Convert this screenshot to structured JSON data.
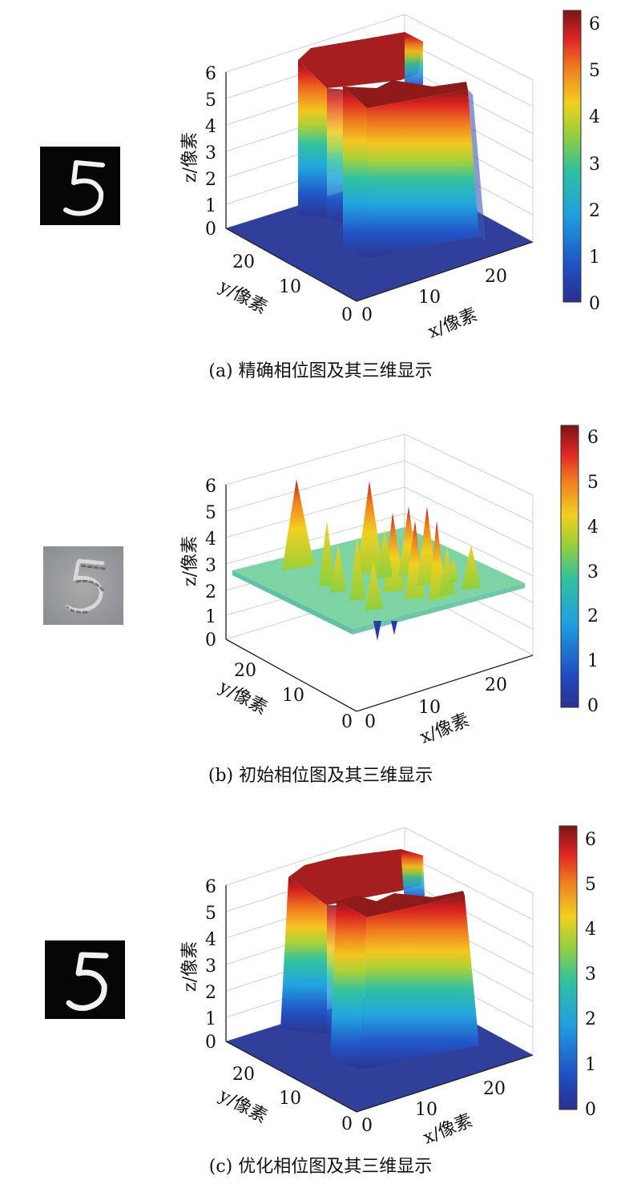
{
  "colorbar_ticks": [
    "0",
    "1",
    "2",
    "3",
    "4",
    "5",
    "6"
  ],
  "chart_data": [
    {
      "type": "surface",
      "caption": "(a) 精确相位图及其三维显示",
      "xlabel": "x/像素",
      "ylabel": "y/像素",
      "zlabel": "z/像素",
      "xticks": [
        "0",
        "10",
        "20"
      ],
      "yticks": [
        "0",
        "10",
        "20"
      ],
      "zticks": [
        "0",
        "1",
        "2",
        "3",
        "4",
        "5",
        "6"
      ],
      "zlim": [
        0,
        6.28
      ],
      "colormap": "jet",
      "thumbnail": "digit-5-binary",
      "peak_height": 6.28,
      "base_height": 0
    },
    {
      "type": "surface",
      "caption": "(b) 初始相位图及其三维显示",
      "xlabel": "x/像素",
      "ylabel": "y/像素",
      "zlabel": "z/像素",
      "xticks": [
        "0",
        "10",
        "20"
      ],
      "yticks": [
        "0",
        "10",
        "20"
      ],
      "zticks": [
        "0",
        "1",
        "2",
        "3",
        "4",
        "5",
        "6"
      ],
      "zlim": [
        0,
        6.28
      ],
      "colormap": "jet",
      "thumbnail": "initial-phase-gray",
      "base_height": 2.8,
      "peak_height": 6
    },
    {
      "type": "surface",
      "caption": "(c) 优化相位图及其三维显示",
      "xlabel": "x/像素",
      "ylabel": "y/像素",
      "zlabel": "z/像素",
      "xticks": [
        "0",
        "10",
        "20"
      ],
      "yticks": [
        "0",
        "10",
        "20"
      ],
      "zticks": [
        "0",
        "1",
        "2",
        "3",
        "4",
        "5",
        "6"
      ],
      "zlim": [
        0,
        6.28
      ],
      "colormap": "jet",
      "thumbnail": "digit-5-binary",
      "peak_height": 6.28,
      "base_height": 0
    }
  ]
}
